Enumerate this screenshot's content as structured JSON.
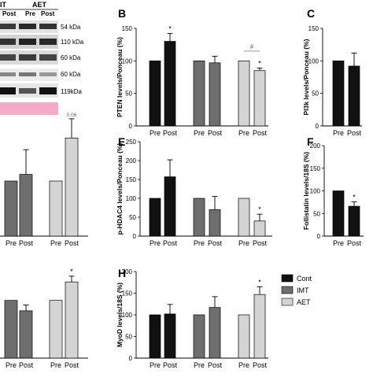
{
  "blot": {
    "group_labels": [
      "IT",
      "AET"
    ],
    "lane_labels": [
      "Post",
      "Pre",
      "Post"
    ],
    "kda_labels": [
      "54 kDa",
      "110 kDa",
      "60 kDa",
      "60 kDa",
      "119kDa"
    ]
  },
  "legend": {
    "items": [
      {
        "label": "Cont",
        "color": "#111111"
      },
      {
        "label": "IMT",
        "color": "#6e6e6e"
      },
      {
        "label": "AET",
        "color": "#d4d4d4"
      }
    ]
  },
  "colors": {
    "cont": "#111111",
    "imt": "#6e6e6e",
    "aet": "#d4d4d4",
    "ponceau": "#f6a9c8"
  },
  "chart_data": [
    {
      "id": "B",
      "panel_letter": "B",
      "type": "bar",
      "ylabel": "PTEN levels/Ponceau (%)",
      "ylim": [
        0,
        150
      ],
      "yticks": [
        "0",
        "50",
        "100",
        "150"
      ],
      "categories": [
        "Pre",
        "Post",
        "Pre",
        "Post",
        "Pre",
        "Post"
      ],
      "groups": [
        "cont",
        "cont",
        "imt",
        "imt",
        "aet",
        "aet"
      ],
      "values": [
        100,
        130,
        100,
        97,
        100,
        85
      ],
      "errors": [
        0,
        12,
        0,
        10,
        0,
        4
      ],
      "annotations": [
        "",
        "*",
        "",
        "",
        "",
        "*"
      ],
      "bracket_label": "#"
    },
    {
      "id": "C",
      "panel_letter": "C",
      "type": "bar",
      "ylabel": "PI3k levels/Ponceau (%)",
      "ylim": [
        0,
        150
      ],
      "yticks": [
        "0",
        "50",
        "100",
        "150"
      ],
      "categories": [
        "Pre",
        "Post"
      ],
      "groups": [
        "cont",
        "cont"
      ],
      "values": [
        100,
        92
      ],
      "errors": [
        0,
        20
      ],
      "annotations": [
        "",
        ""
      ]
    },
    {
      "id": "D",
      "panel_letter": "",
      "type": "bar",
      "ylabel": "",
      "ylim": [
        0,
        200
      ],
      "yticks": [],
      "categories": [
        "Pre",
        "Post",
        "Pre",
        "Post"
      ],
      "groups": [
        "imt",
        "imt",
        "aet",
        "aet"
      ],
      "values": [
        100,
        112,
        100,
        178
      ],
      "errors": [
        0,
        45,
        0,
        35
      ],
      "annotations": [
        "",
        "",
        "",
        "0.06"
      ]
    },
    {
      "id": "E",
      "panel_letter": "E",
      "type": "bar",
      "ylabel": "p-HDAC4 levels/Ponceau (%)",
      "ylim": [
        0,
        250
      ],
      "yticks": [
        "0",
        "50",
        "100",
        "150",
        "200",
        "250"
      ],
      "categories": [
        "Pre",
        "Post",
        "Pre",
        "Post",
        "Pre",
        "Post"
      ],
      "groups": [
        "cont",
        "cont",
        "imt",
        "imt",
        "aet",
        "aet"
      ],
      "values": [
        100,
        157,
        100,
        70,
        100,
        40
      ],
      "errors": [
        0,
        45,
        0,
        35,
        0,
        18
      ],
      "annotations": [
        "",
        "",
        "",
        "",
        "",
        "*"
      ]
    },
    {
      "id": "F",
      "panel_letter": "F",
      "type": "bar",
      "ylabel": "Follistatin levels/18S (%)",
      "ylim": [
        0,
        200
      ],
      "yticks": [
        "0",
        "50",
        "100",
        "150",
        "200"
      ],
      "categories": [
        "Pre",
        "Post"
      ],
      "groups": [
        "cont",
        "cont"
      ],
      "values": [
        100,
        66
      ],
      "errors": [
        0,
        10
      ],
      "annotations": [
        "",
        "*"
      ]
    },
    {
      "id": "G",
      "panel_letter": "",
      "type": "bar",
      "ylabel": "",
      "ylim": [
        0,
        150
      ],
      "yticks": [],
      "categories": [
        "Pre",
        "Post",
        "Pre",
        "Post"
      ],
      "groups": [
        "imt",
        "imt",
        "aet",
        "aet"
      ],
      "values": [
        100,
        82,
        100,
        132
      ],
      "errors": [
        0,
        10,
        0,
        10
      ],
      "annotations": [
        "",
        "",
        "",
        "*"
      ]
    },
    {
      "id": "H",
      "panel_letter": "H",
      "type": "bar",
      "ylabel": "MyoD levels/18S (%)",
      "ylim": [
        0,
        200
      ],
      "yticks": [
        "0",
        "50",
        "100",
        "150",
        "200"
      ],
      "categories": [
        "Pre",
        "Post",
        "Pre",
        "Post",
        "Pre",
        "Post"
      ],
      "groups": [
        "cont",
        "cont",
        "imt",
        "imt",
        "aet",
        "aet"
      ],
      "values": [
        100,
        102,
        100,
        117,
        100,
        147
      ],
      "errors": [
        0,
        22,
        0,
        25,
        0,
        18
      ],
      "annotations": [
        "",
        "",
        "",
        "",
        "",
        "*"
      ]
    }
  ]
}
